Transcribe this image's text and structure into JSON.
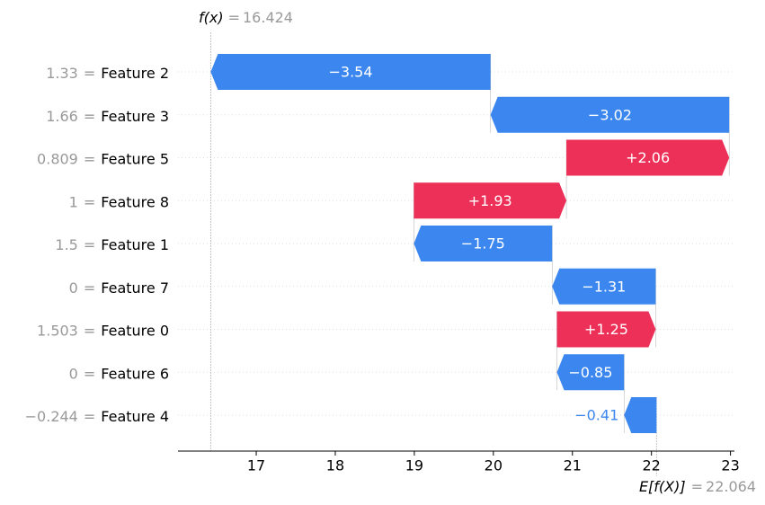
{
  "chart_data": {
    "type": "waterfall",
    "feature_names": [
      "Feature 2",
      "Feature 3",
      "Feature 5",
      "Feature 8",
      "Feature 1",
      "Feature 7",
      "Feature 0",
      "Feature 6",
      "Feature 4"
    ],
    "feature_values": [
      "1.33",
      "1.66",
      "0.809",
      "1",
      "1.5",
      "0",
      "1.503",
      "0",
      "−0.244"
    ],
    "separator": "=",
    "values": [
      -3.54,
      -3.02,
      2.06,
      1.93,
      -1.75,
      -1.31,
      1.25,
      -0.85,
      -0.41
    ],
    "value_labels": [
      "−3.54",
      "−3.02",
      "+2.06",
      "+1.93",
      "−1.75",
      "−1.31",
      "+1.25",
      "−0.85",
      "−0.41"
    ],
    "base_label": "E[f(X)]",
    "base_value": 22.064,
    "fx_label": "f(x)",
    "fx_value": 16.424,
    "positive_color": "#ec3058",
    "negative_color": "#3b87ef",
    "xlim": [
      16.01,
      23.05
    ],
    "xticks": [
      17,
      18,
      19,
      20,
      21,
      22,
      23
    ]
  }
}
